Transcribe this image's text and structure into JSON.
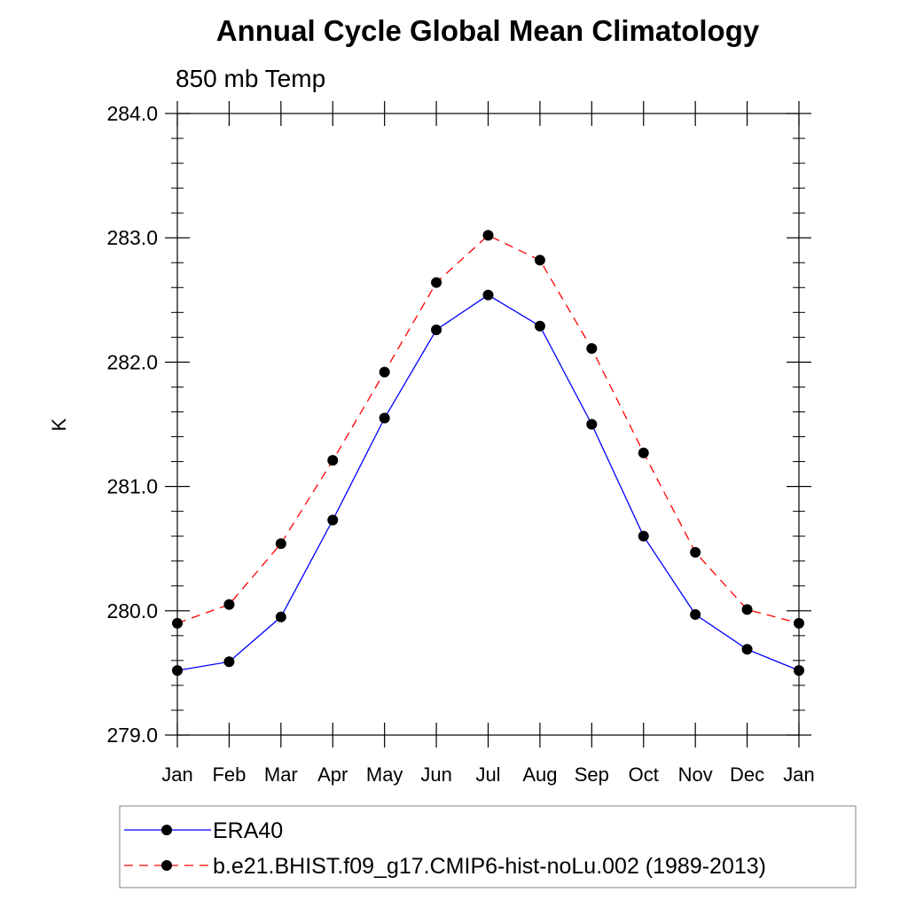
{
  "chart_data": {
    "type": "line",
    "title": "Annual Cycle Global Mean Climatology",
    "subtitle": "850 mb Temp",
    "xlabel": "",
    "ylabel": "K",
    "categories": [
      "Jan",
      "Feb",
      "Mar",
      "Apr",
      "May",
      "Jun",
      "Jul",
      "Aug",
      "Sep",
      "Oct",
      "Nov",
      "Dec",
      "Jan"
    ],
    "ylim": [
      279.0,
      284.0
    ],
    "yticks": [
      "279.0",
      "280.0",
      "281.0",
      "282.0",
      "283.0",
      "284.0"
    ],
    "ytick_values": [
      279.0,
      280.0,
      281.0,
      282.0,
      283.0,
      284.0
    ],
    "grid": false,
    "legend_position": "bottom",
    "series": [
      {
        "name": "ERA40",
        "color": "#0000ff",
        "dash": "solid",
        "marker": "filled-circle",
        "values": [
          279.52,
          279.59,
          279.95,
          280.73,
          281.55,
          282.26,
          282.54,
          282.29,
          281.5,
          280.6,
          279.97,
          279.69,
          279.52
        ]
      },
      {
        "name": "b.e21.BHIST.f09_g17.CMIP6-hist-noLu.002 (1989-2013)",
        "color": "#ff0000",
        "dash": "dashed",
        "marker": "filled-circle",
        "values": [
          279.9,
          280.05,
          280.54,
          281.21,
          281.92,
          282.64,
          283.02,
          282.82,
          282.11,
          281.27,
          280.47,
          280.01,
          279.9
        ]
      }
    ]
  }
}
